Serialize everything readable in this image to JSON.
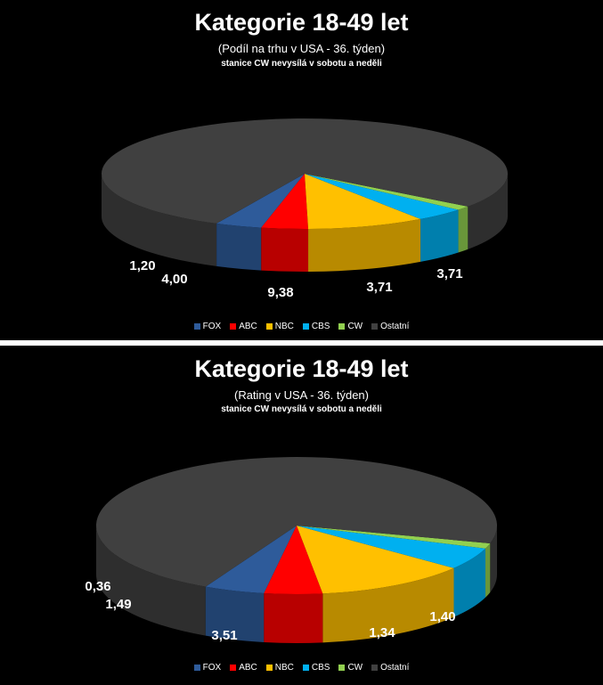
{
  "chart_data": [
    {
      "type": "pie",
      "title": "Kategorie 18-49 let",
      "subtitle": "(Podíl na trhu v USA - 36. týden)",
      "note": "stanice CW nevysílá  v sobotu a neděli",
      "legend_position": "bottom",
      "slices": [
        {
          "name": "FOX",
          "value": 3.71,
          "label": "3,71",
          "color": "#2e5b9a"
        },
        {
          "name": "ABC",
          "value": 3.71,
          "label": "3,71",
          "color": "#ff0000"
        },
        {
          "name": "NBC",
          "value": 9.38,
          "label": "9,38",
          "color": "#ffc000"
        },
        {
          "name": "CBS",
          "value": 4.0,
          "label": "4,00",
          "color": "#00b0f0"
        },
        {
          "name": "CW",
          "value": 1.2,
          "label": "1,20",
          "color": "#92d050"
        },
        {
          "name": "Ostatní",
          "value": 78.0,
          "label": "",
          "color": "#404040"
        }
      ]
    },
    {
      "type": "pie",
      "title": "Kategorie 18-49 let",
      "subtitle": "(Rating v USA - 36. týden)",
      "note": "stanice CW nevysílá  v sobotu a neděli",
      "legend_position": "bottom",
      "slices": [
        {
          "name": "FOX",
          "value": 1.4,
          "label": "1,40",
          "color": "#2e5b9a"
        },
        {
          "name": "ABC",
          "value": 1.34,
          "label": "1,34",
          "color": "#ff0000"
        },
        {
          "name": "NBC",
          "value": 3.51,
          "label": "3,51",
          "color": "#ffc000"
        },
        {
          "name": "CBS",
          "value": 1.49,
          "label": "1,49",
          "color": "#00b0f0"
        },
        {
          "name": "CW",
          "value": 0.36,
          "label": "0,36",
          "color": "#92d050"
        },
        {
          "name": "Ostatní",
          "value": 20.5,
          "label": "",
          "color": "#404040"
        }
      ]
    }
  ]
}
